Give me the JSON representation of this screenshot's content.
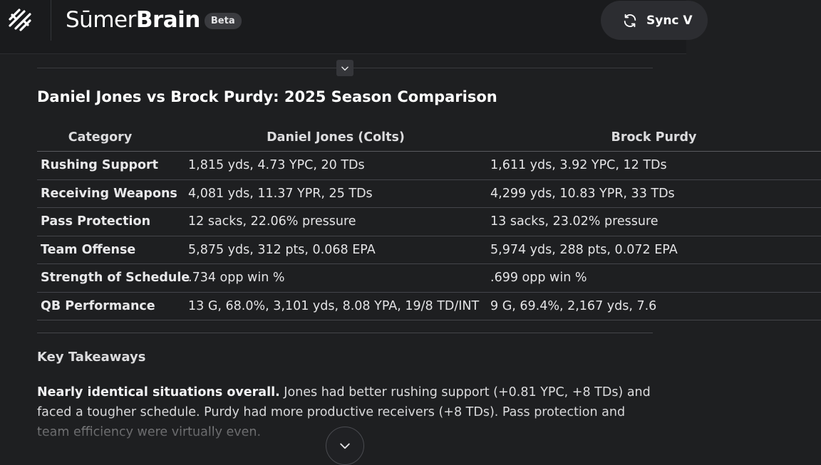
{
  "header": {
    "brand": {
      "light": "Sūmer",
      "bold": "Brain"
    },
    "beta_badge": "Beta",
    "sync_button_label": "Sync V"
  },
  "main": {
    "title": "Daniel Jones vs Brock Purdy: 2025 Season Comparison",
    "table": {
      "columns": [
        "Category",
        "Daniel Jones (Colts)",
        "Brock Purdy"
      ],
      "rows": [
        {
          "category": "Rushing Support",
          "jones": "1,815 yds, 4.73 YPC, 20 TDs",
          "purdy": "1,611 yds, 3.92 YPC, 12 TDs"
        },
        {
          "category": "Receiving Weapons",
          "jones": "4,081 yds, 11.37 YPR, 25 TDs",
          "purdy": "4,299 yds, 10.83 YPR, 33 TDs"
        },
        {
          "category": "Pass Protection",
          "jones": "12 sacks, 22.06% pressure",
          "purdy": "13 sacks, 23.02% pressure"
        },
        {
          "category": "Team Offense",
          "jones": "5,875 yds, 312 pts, 0.068 EPA",
          "purdy": "5,974 yds, 288 pts, 0.072 EPA"
        },
        {
          "category": "Strength of Schedule",
          "jones": ".734 opp win %",
          "purdy": ".699 opp win %"
        },
        {
          "category": "QB Performance",
          "jones": "13 G, 68.0%, 3,101 yds, 8.08 YPA, 19/8 TD/INT",
          "purdy": "9 G, 69.4%, 2,167 yds, 7.6"
        }
      ]
    },
    "key_takeaways": {
      "heading": "Key Takeaways",
      "lead": "Nearly identical situations overall.",
      "body": " Jones had better rushing support (+0.81 YPC, +8 TDs) and faced a tougher schedule. Purdy had more productive receivers (+8 TDs). Pass protection and team efficiency were virtually even."
    }
  },
  "colors": {
    "background": "#1e1f21",
    "header_background": "#1a1b1d",
    "text_primary": "#ffffff",
    "badge_background": "#3a3b3f"
  },
  "icons": {
    "logo": "sumer-logo-icon",
    "sync": "sync-icon",
    "collapse": "chevron-down-icon",
    "scroll_down": "chevron-down-icon"
  }
}
